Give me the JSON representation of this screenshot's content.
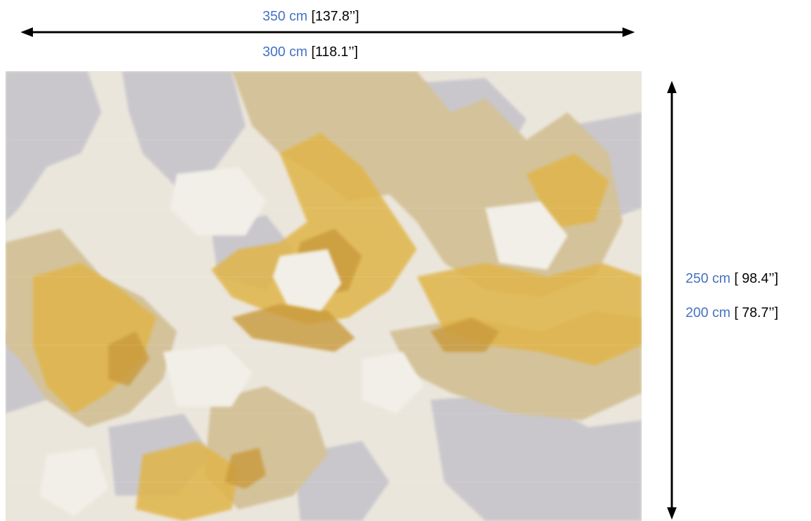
{
  "dimensions": {
    "width_outer": {
      "metric": "350 cm",
      "imperial": " [137.8’’]"
    },
    "width_inner": {
      "metric": "300 cm",
      "imperial": " [118.1’’]"
    },
    "height_outer": {
      "metric": "250 cm",
      "imperial": " [ 98.4’’]"
    },
    "height_inner": {
      "metric": "200 cm",
      "imperial": " [ 78.7’’]"
    }
  },
  "colors": {
    "metric_text": "#4472c4",
    "arrow": "#000000",
    "rug_cream": "#ebe6dc",
    "rug_grey": "#c9c7cc",
    "rug_tan": "#d4c29a",
    "rug_gold": "#e0b54a",
    "rug_ochre": "#c99a3a"
  }
}
